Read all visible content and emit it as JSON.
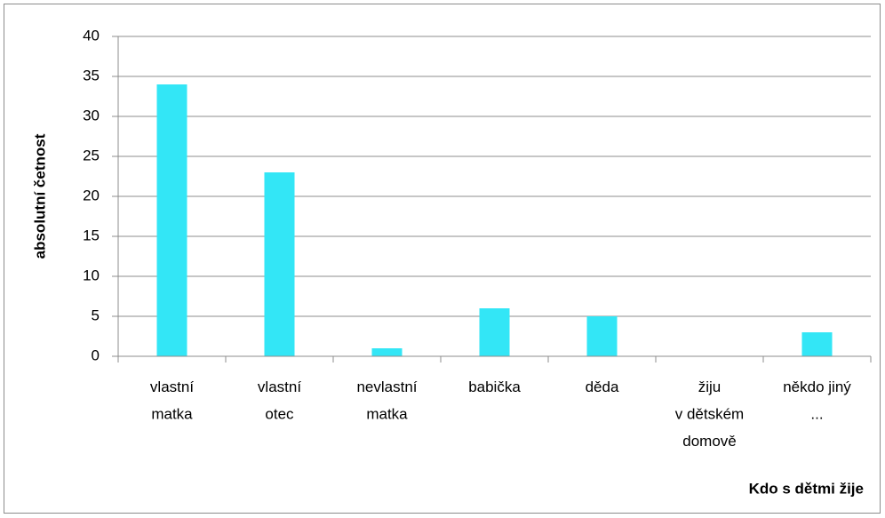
{
  "chart_data": {
    "type": "bar",
    "y_label": "absolutní četnost",
    "x_label": "Kdo  s dětmi žije",
    "categories": [
      "vlastní\nmatka",
      "vlastní\notec",
      "nevlastní\nmatka",
      "babička",
      "děda",
      "žiju\nv dětském\ndomově",
      "někdo jiný\n..."
    ],
    "values": [
      34,
      23,
      1,
      6,
      5,
      0,
      3
    ],
    "color": "#33e6f6",
    "ylim": [
      0,
      40
    ],
    "yticks": [
      0,
      5,
      10,
      15,
      20,
      25,
      30,
      35,
      40
    ],
    "grid": true
  }
}
